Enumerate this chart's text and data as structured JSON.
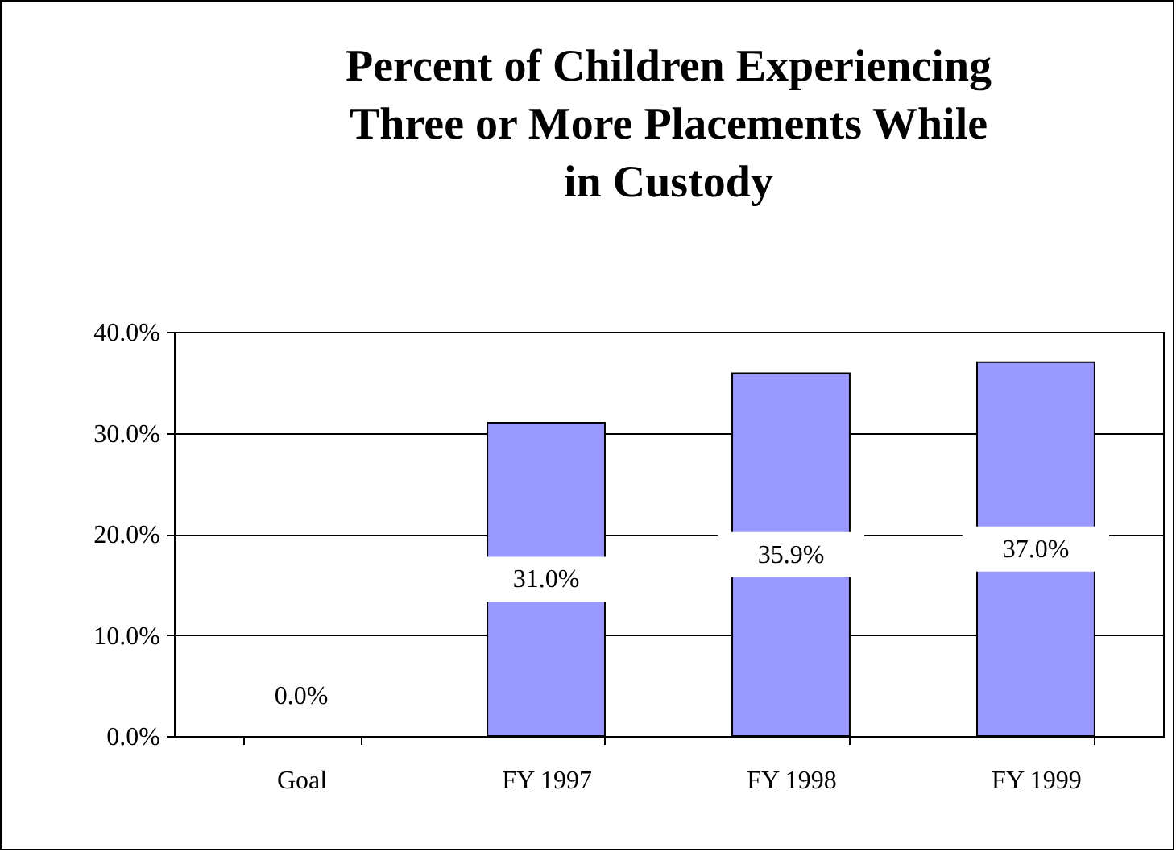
{
  "chart_data": {
    "type": "bar",
    "title": "Percent of Children Experiencing Three or More Placements While in Custody",
    "categories": [
      "Goal",
      "FY 1997",
      "FY 1998",
      "FY 1999"
    ],
    "values": [
      0,
      31.0,
      35.9,
      37.0
    ],
    "value_labels": [
      "0.0%",
      "31.0%",
      "35.9%",
      "37.0%"
    ],
    "color": "#9999ff",
    "ylim": [
      0,
      40
    ],
    "yticks": [
      {
        "value": 0,
        "label": "0.0%"
      },
      {
        "value": 10,
        "label": "10.0%"
      },
      {
        "value": 20,
        "label": "20.0%"
      },
      {
        "value": 30,
        "label": "30.0%"
      },
      {
        "value": 40,
        "label": "40.0%"
      }
    ],
    "grid": "y"
  }
}
